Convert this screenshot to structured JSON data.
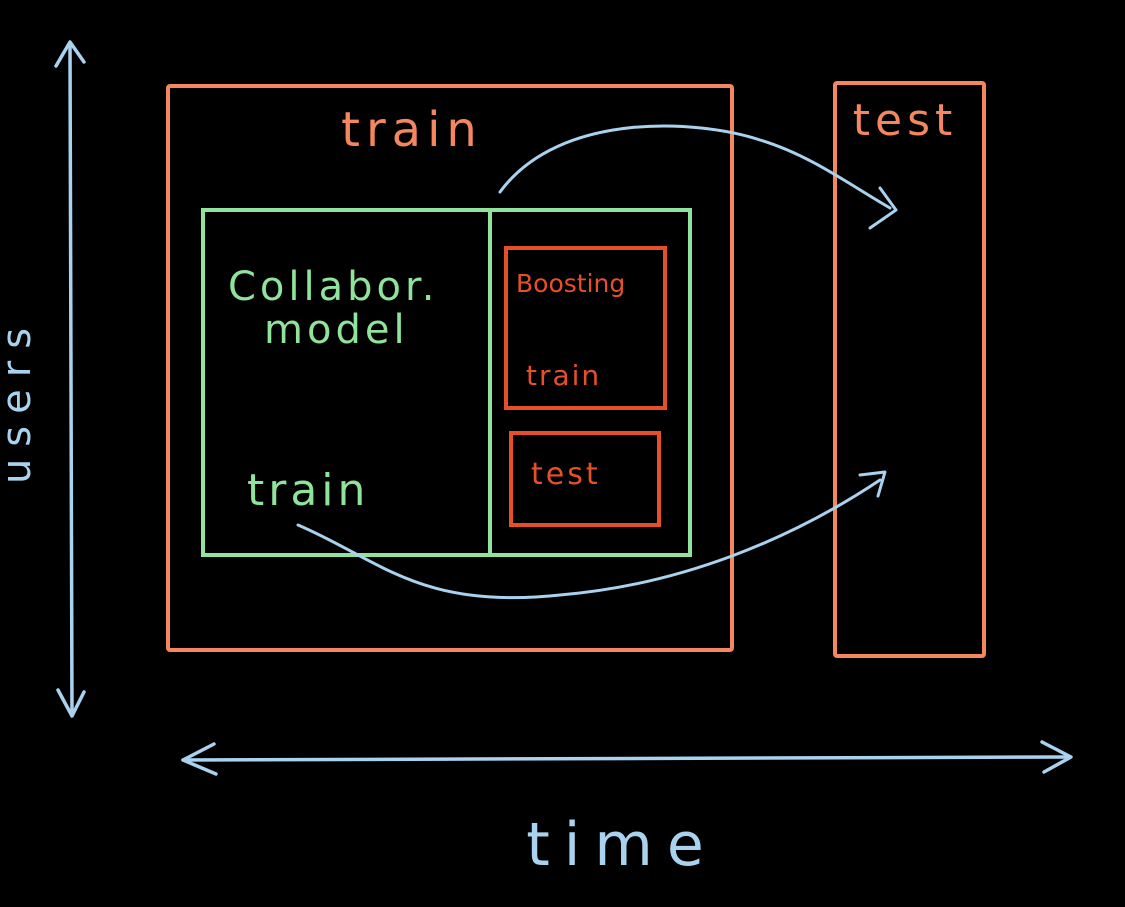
{
  "axes": {
    "vertical_label": "users",
    "horizontal_label": "time"
  },
  "outer_train": {
    "label": "train"
  },
  "outer_test": {
    "label": "test"
  },
  "collab": {
    "title_line1": "Collabor.",
    "title_line2": "model",
    "train_label": "train"
  },
  "boosting": {
    "title": "Boosting",
    "train_label": "train",
    "test_label": "test"
  },
  "colors": {
    "background": "#000000",
    "orange": "#F4875E",
    "green": "#8FE39B",
    "red": "#E5502A",
    "blue": "#A9D2EE"
  }
}
